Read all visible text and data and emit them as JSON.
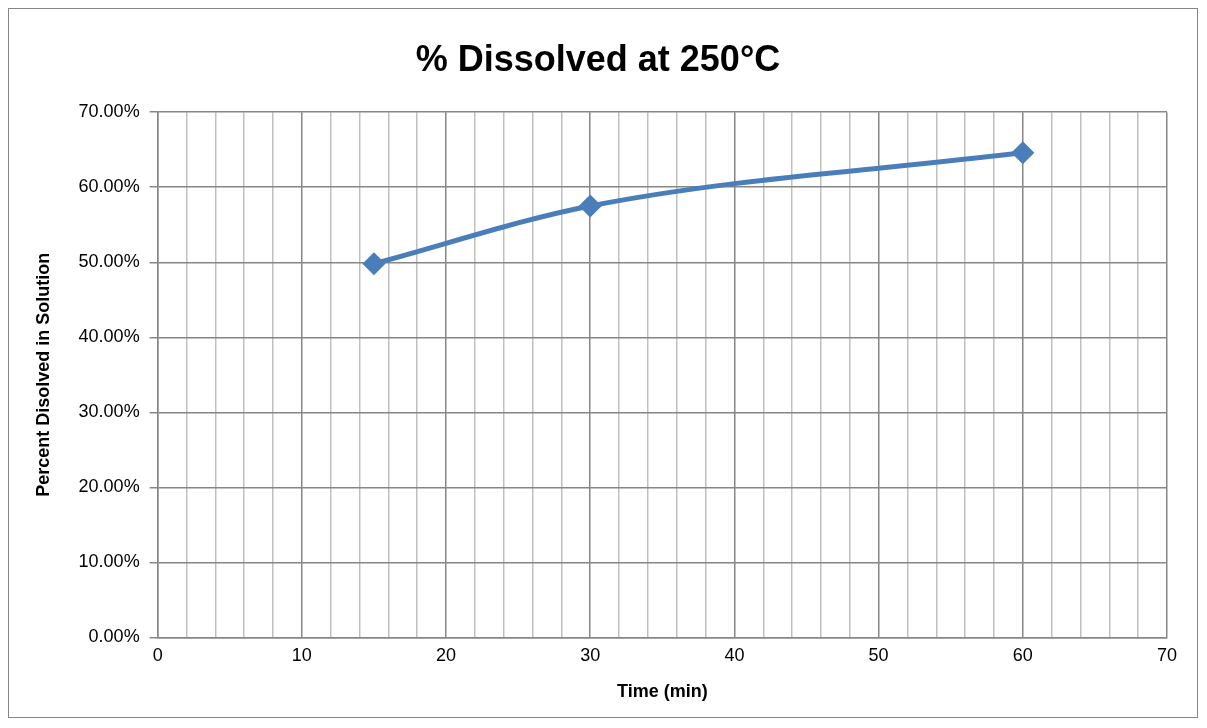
{
  "chart_data": {
    "type": "line",
    "title": "% Dissolved at 250°C",
    "xlabel": "Time (min)",
    "ylabel": "Percent Disolved in Solution",
    "series": [
      {
        "x": [
          15,
          30,
          60
        ],
        "values": [
          49.8,
          57.5,
          64.6
        ],
        "color": "#4a7ebb"
      }
    ],
    "xlim": [
      0,
      70
    ],
    "xticks": [
      0,
      {
        "value": 2,
        "label": null
      },
      {
        "value": 4,
        "label": null
      },
      {
        "value": 6,
        "label": null
      },
      {
        "value": 8,
        "label": null
      },
      10,
      {
        "value": 12,
        "label": null
      },
      {
        "value": 14,
        "label": null
      },
      {
        "value": 16,
        "label": null
      },
      {
        "value": 18,
        "label": null
      },
      20,
      {
        "value": 22,
        "label": null
      },
      {
        "value": 24,
        "label": null
      },
      {
        "value": 26,
        "label": null
      },
      {
        "value": 28,
        "label": null
      },
      30,
      {
        "value": 32,
        "label": null
      },
      {
        "value": 34,
        "label": null
      },
      {
        "value": 36,
        "label": null
      },
      {
        "value": 38,
        "label": null
      },
      40,
      {
        "value": 42,
        "label": null
      },
      {
        "value": 44,
        "label": null
      },
      {
        "value": 46,
        "label": null
      },
      {
        "value": 48,
        "label": null
      },
      50,
      {
        "value": 52,
        "label": null
      },
      {
        "value": 54,
        "label": null
      },
      {
        "value": 56,
        "label": null
      },
      {
        "value": 58,
        "label": null
      },
      60,
      {
        "value": 62,
        "label": null
      },
      {
        "value": 64,
        "label": null
      },
      {
        "value": 66,
        "label": null
      },
      {
        "value": 68,
        "label": null
      },
      70
    ],
    "ylim": [
      0,
      70
    ],
    "yticks": [
      {
        "value": 0,
        "label": "0.00%"
      },
      {
        "value": 10,
        "label": "10.00%"
      },
      {
        "value": 20,
        "label": "20.00%"
      },
      {
        "value": 30,
        "label": "30.00%"
      },
      {
        "value": 40,
        "label": "40.00%"
      },
      {
        "value": 50,
        "label": "50.00%"
      },
      {
        "value": 60,
        "label": "60.00%"
      },
      {
        "value": 70,
        "label": "70.00%"
      }
    ],
    "grid": true,
    "legend": false,
    "marker": "diamond",
    "line_style": "solid"
  }
}
